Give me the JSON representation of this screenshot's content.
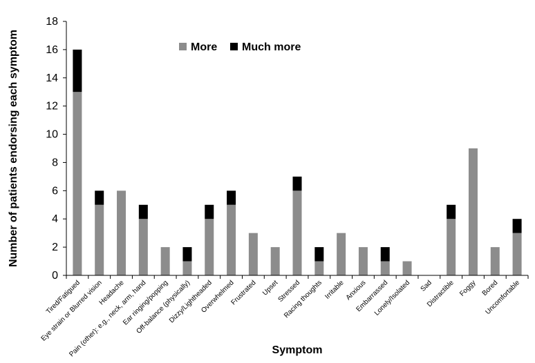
{
  "chart_data": {
    "type": "bar",
    "stacked": true,
    "title": "",
    "xlabel": "Symptom",
    "ylabel": "Number of patients endorsing each symptom",
    "ylim": [
      0,
      18
    ],
    "yticks": [
      0,
      2,
      4,
      6,
      8,
      10,
      12,
      14,
      16,
      18
    ],
    "grid": false,
    "legend_position": "top-center",
    "categories": [
      "Tired/Fatigued",
      "Eye strain or Blurred vision",
      "Headache",
      "Pain (other): e.g., neck, arm, hand",
      "Ear ringing/popping",
      "Off-balance (physically)",
      "Dizzy/Lightheaded",
      "Overwhelmed",
      "Frustrated",
      "Upset",
      "Stressed",
      "Racing thoughts",
      "Irritable",
      "Anxious",
      "Embarrassed",
      "Lonely/Isolated",
      "Sad",
      "Distractible",
      "Foggy",
      "Bored",
      "Uncomfortable"
    ],
    "series": [
      {
        "name": "More",
        "color": "#8c8c8c",
        "values": [
          13,
          5,
          6,
          4,
          2,
          1,
          4,
          5,
          3,
          2,
          6,
          1,
          3,
          2,
          1,
          1,
          0,
          4,
          9,
          2,
          3
        ]
      },
      {
        "name": "Much more",
        "color": "#000000",
        "values": [
          3,
          1,
          0,
          1,
          0,
          1,
          1,
          1,
          0,
          0,
          1,
          1,
          0,
          0,
          1,
          0,
          0,
          1,
          0,
          0,
          1
        ]
      }
    ]
  }
}
